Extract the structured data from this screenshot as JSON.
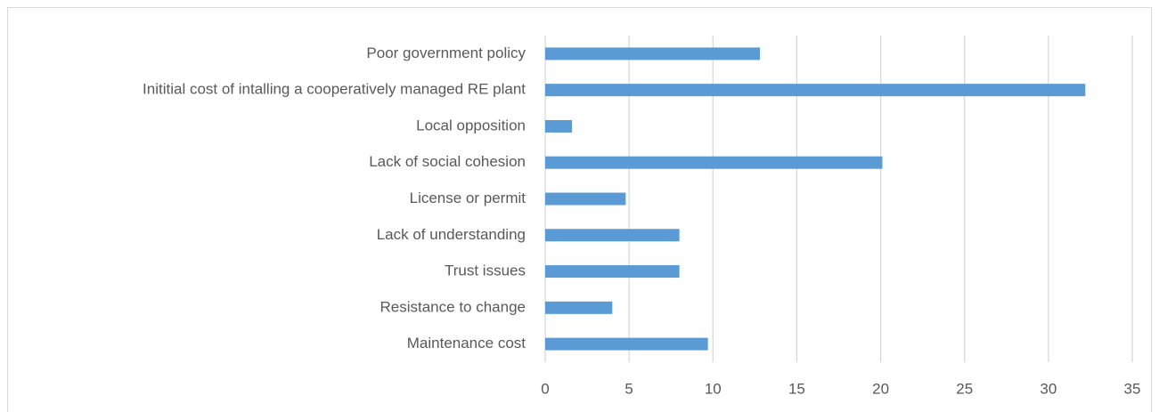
{
  "chart_data": {
    "type": "bar",
    "orientation": "horizontal",
    "categories": [
      "Poor government policy",
      "Inititial cost of intalling a cooperatively managed RE plant",
      "Local opposition",
      "Lack of social cohesion",
      "License or permit",
      "Lack of understanding",
      "Trust issues",
      "Resistance to change",
      "Maintenance cost"
    ],
    "values": [
      12.8,
      32.2,
      1.6,
      20.1,
      4.8,
      8.0,
      8.0,
      4.0,
      9.7
    ],
    "color": "#5b9bd5",
    "xlim": [
      0,
      35
    ],
    "xticks": [
      0,
      5,
      10,
      15,
      20,
      25,
      30,
      35
    ],
    "grid": true
  }
}
